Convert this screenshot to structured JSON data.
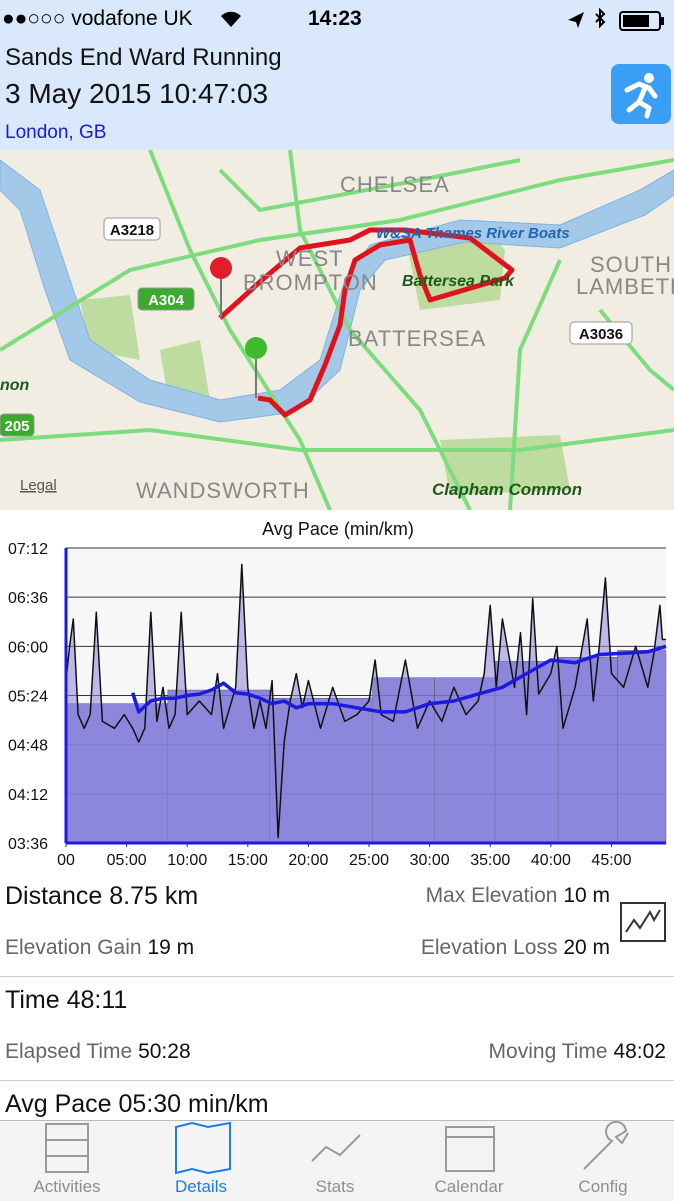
{
  "status_bar": {
    "carrier": "●●○○○ vodafone UK",
    "time": "14:23"
  },
  "header": {
    "title": "Sands End Ward Running",
    "date": "3 May 2015 10:47:03",
    "location": "London, GB"
  },
  "map": {
    "labels": [
      "CHELSEA",
      "WEST",
      "BROMPTON",
      "BATTERSEA",
      "Battersea Park",
      "SOUTH",
      "LAMBETH",
      "W&SA Thames River Boats",
      "Clapham Common",
      "WANDSWORTH",
      "non"
    ],
    "road_labels": [
      "A3218",
      "A304",
      "A3036",
      "205"
    ],
    "legal": "Legal"
  },
  "chart_data": {
    "type": "line",
    "title": "Avg Pace (min/km)",
    "xlim": [
      0,
      49.5
    ],
    "xticks": [
      {
        "value": 0,
        "label": "00"
      },
      {
        "value": 5,
        "label": "05:00"
      },
      {
        "value": 10,
        "label": "10:00"
      },
      {
        "value": 15,
        "label": "15:00"
      },
      {
        "value": 20,
        "label": "20:00"
      },
      {
        "value": 25,
        "label": "25:00"
      },
      {
        "value": 30,
        "label": "30:00"
      },
      {
        "value": 35,
        "label": "35:00"
      },
      {
        "value": 40,
        "label": "40:00"
      },
      {
        "value": 45,
        "label": "45:00"
      }
    ],
    "ylim": [
      216,
      432
    ],
    "yticks": [
      {
        "value": 216,
        "label": "03:36"
      },
      {
        "value": 252,
        "label": "04:12"
      },
      {
        "value": 288,
        "label": "04:48"
      },
      {
        "value": 324,
        "label": "05:24"
      },
      {
        "value": 360,
        "label": "06:00"
      },
      {
        "value": 396,
        "label": "06:36"
      },
      {
        "value": 432,
        "label": "07:12"
      }
    ],
    "grid": true,
    "splits": {
      "color": "#7a72d6",
      "bins": [
        0,
        8.4,
        16.8,
        25.3,
        30.4,
        35.4,
        40.6,
        45.5,
        49.6
      ],
      "values": [
        318,
        328,
        322,
        337,
        337,
        349,
        352,
        357
      ]
    },
    "series": [
      {
        "color": "#111111",
        "fill": "#8c86dc",
        "x": [
          0,
          0.3,
          0.6,
          1,
          1.5,
          2,
          2.5,
          3,
          4,
          4.8,
          5.5,
          6,
          6.5,
          7,
          7.5,
          8,
          8.5,
          9,
          9.5,
          10,
          11,
          12,
          12.5,
          13,
          14,
          14.5,
          15,
          15.5,
          16,
          16.5,
          17,
          17.5,
          18,
          18.5,
          19,
          19.5,
          20,
          21,
          22,
          23,
          24,
          25,
          25.5,
          26,
          27,
          28,
          29,
          30,
          31,
          32,
          33,
          34,
          34.5,
          35,
          35.5,
          36,
          37,
          37.5,
          38,
          38.5,
          39,
          40,
          40.5,
          41,
          42,
          43,
          43.5,
          44,
          44.5,
          45,
          46,
          47,
          48,
          48.5,
          49,
          49.2,
          49.5
        ],
        "values": [
          335,
          360,
          380,
          310,
          300,
          310,
          385,
          305,
          300,
          310,
          300,
          290,
          300,
          385,
          305,
          330,
          300,
          310,
          385,
          310,
          320,
          310,
          340,
          300,
          330,
          420,
          330,
          300,
          320,
          300,
          335,
          220,
          290,
          320,
          340,
          315,
          335,
          300,
          330,
          305,
          310,
          320,
          350,
          310,
          305,
          350,
          300,
          320,
          305,
          330,
          310,
          320,
          340,
          390,
          330,
          380,
          330,
          370,
          310,
          395,
          325,
          340,
          360,
          300,
          330,
          380,
          320,
          360,
          410,
          340,
          330,
          360,
          330,
          355,
          390,
          365,
          365
        ]
      },
      {
        "color": "#1a1ae0",
        "x": [
          5.5,
          6,
          7,
          8,
          9,
          10,
          11,
          12,
          13,
          14,
          15,
          16,
          17,
          18,
          19,
          20,
          22,
          24,
          26,
          28,
          30,
          32,
          34,
          36,
          38,
          40,
          42,
          44,
          46,
          48,
          49.5
        ],
        "values": [
          326,
          312,
          320,
          322,
          322,
          324,
          325,
          328,
          333,
          326,
          325,
          322,
          318,
          320,
          315,
          318,
          318,
          315,
          312,
          312,
          318,
          320,
          325,
          330,
          340,
          350,
          348,
          354,
          355,
          356,
          360
        ]
      }
    ]
  },
  "stats": [
    {
      "left_label": "Distance",
      "left_value": "8.75 km",
      "right_label": "Max Elevation",
      "right_value": "10 m"
    },
    {
      "left_label": "Elevation Gain",
      "left_value": "19 m",
      "right_label": "Elevation Loss",
      "right_value": "20 m"
    },
    {
      "left_label": "Time",
      "left_value": "48:11"
    },
    {
      "left_label": "Elapsed Time",
      "left_value": "50:28",
      "right_label": "Moving Time",
      "right_value": "48:02"
    },
    {
      "left_label": "Avg Pace",
      "left_value": "05:30 min/km"
    }
  ],
  "tabs": [
    "Activities",
    "Details",
    "Stats",
    "Calendar",
    "Config"
  ]
}
